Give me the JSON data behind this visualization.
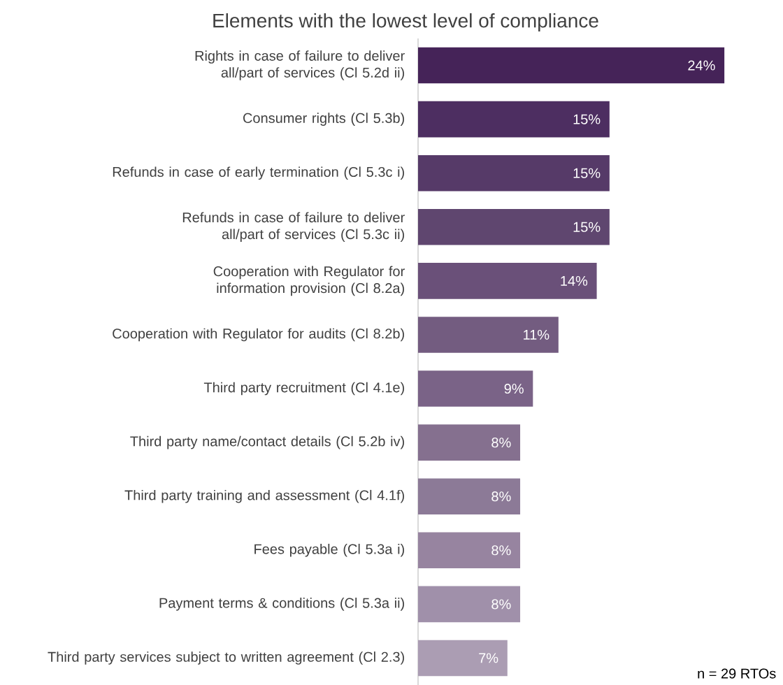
{
  "chart_data": {
    "type": "bar",
    "orientation": "horizontal",
    "title": "Elements with the lowest level of compliance",
    "categories": [
      "Rights in case of failure to deliver all/part of services (Cl 5.2d ii)",
      "Consumer rights (Cl 5.3b)",
      "Refunds in case of early termination (Cl 5.3c i)",
      "Refunds in case of failure to deliver all/part of services (Cl 5.3c ii)",
      "Cooperation with Regulator for information provision  (Cl 8.2a)",
      "Cooperation with Regulator for audits (Cl 8.2b)",
      "Third party recruitment  (Cl 4.1e)",
      "Third party name/contact details (Cl 5.2b iv)",
      "Third party training and assessment  (Cl 4.1f)",
      "Fees payable (Cl 5.3a i)",
      "Payment terms & conditions (Cl 5.3a ii)",
      "Third party services subject to written agreement (Cl 2.3)"
    ],
    "values": [
      24,
      15,
      15,
      15,
      14,
      11,
      9,
      8,
      8,
      8,
      8,
      7
    ],
    "value_labels": [
      "24%",
      "15%",
      "15%",
      "15%",
      "14%",
      "11%",
      "9%",
      "8%",
      "8%",
      "8%",
      "8%",
      "7%"
    ],
    "colors": [
      "#452358",
      "#4d2e61",
      "#563a68",
      "#5f466f",
      "#6a5079",
      "#735c80",
      "#7a6387",
      "#85708f",
      "#8c7a97",
      "#9784a0",
      "#a090aa",
      "#ab9db3"
    ],
    "annotations": [
      "n = 29 RTOs"
    ]
  }
}
